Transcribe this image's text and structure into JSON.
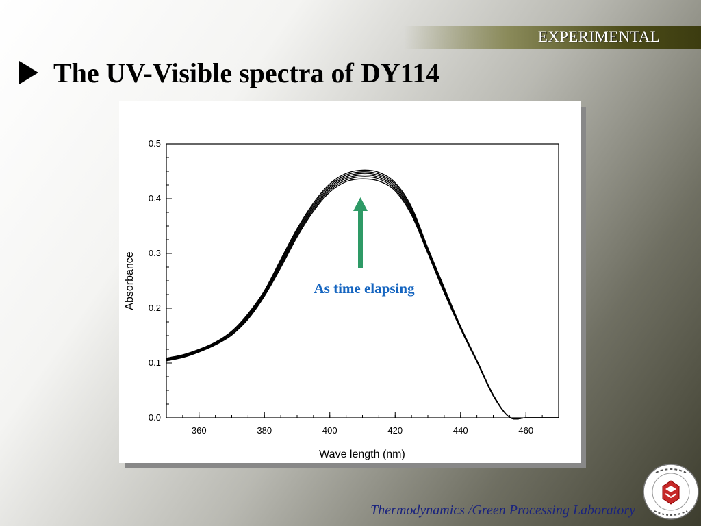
{
  "header": {
    "section_label": "EXPERIMENTAL"
  },
  "slide": {
    "title": "The UV-Visible spectra of DY114"
  },
  "footer": {
    "lab": "Thermodynamics /Green Processing Laboratory"
  },
  "logo": {
    "text": "서강대학교 · Sogang University"
  },
  "annotation": {
    "text": "As time elapsing",
    "color": "#1565c0",
    "arrow_color": "#2e9a66"
  },
  "chart_data": {
    "type": "line",
    "title": "",
    "xlabel": "Wave length (nm)",
    "ylabel": "Absorbance",
    "xlim": [
      350,
      470
    ],
    "ylim": [
      0.0,
      0.5
    ],
    "xticks": [
      360,
      380,
      400,
      420,
      440,
      460
    ],
    "yticks": [
      0.0,
      0.1,
      0.2,
      0.3,
      0.4,
      0.5
    ],
    "ytick_labels": [
      "0.0",
      "0.1",
      "0.2",
      "0.3",
      "0.4",
      "0.5"
    ],
    "grid": false,
    "legend": "none",
    "x": [
      350,
      355,
      360,
      365,
      370,
      375,
      380,
      385,
      390,
      395,
      400,
      405,
      410,
      415,
      420,
      425,
      430,
      435,
      440,
      445,
      450,
      455,
      460,
      465,
      470
    ],
    "series": [
      {
        "values": [
          0.104,
          0.11,
          0.12,
          0.133,
          0.151,
          0.18,
          0.222,
          0.274,
          0.33,
          0.377,
          0.412,
          0.431,
          0.436,
          0.432,
          0.414,
          0.37,
          0.3,
          0.228,
          0.162,
          0.102,
          0.04,
          0.001,
          0.0,
          0.0,
          0.0
        ]
      },
      {
        "values": [
          0.105,
          0.111,
          0.121,
          0.134,
          0.152,
          0.182,
          0.224,
          0.277,
          0.333,
          0.38,
          0.415,
          0.434,
          0.44,
          0.436,
          0.417,
          0.373,
          0.302,
          0.23,
          0.163,
          0.103,
          0.04,
          0.001,
          0.0,
          0.0,
          0.0
        ]
      },
      {
        "values": [
          0.106,
          0.112,
          0.122,
          0.135,
          0.154,
          0.184,
          0.226,
          0.28,
          0.336,
          0.383,
          0.418,
          0.437,
          0.443,
          0.439,
          0.42,
          0.376,
          0.304,
          0.232,
          0.164,
          0.103,
          0.041,
          0.001,
          0.0,
          0.0,
          0.0
        ]
      },
      {
        "values": [
          0.107,
          0.113,
          0.123,
          0.136,
          0.155,
          0.186,
          0.228,
          0.283,
          0.339,
          0.386,
          0.421,
          0.44,
          0.446,
          0.442,
          0.423,
          0.379,
          0.306,
          0.234,
          0.165,
          0.104,
          0.041,
          0.001,
          0.0,
          0.0,
          0.0
        ]
      },
      {
        "values": [
          0.108,
          0.114,
          0.124,
          0.137,
          0.157,
          0.188,
          0.23,
          0.286,
          0.342,
          0.389,
          0.424,
          0.443,
          0.449,
          0.445,
          0.426,
          0.382,
          0.308,
          0.236,
          0.166,
          0.105,
          0.042,
          0.001,
          0.0,
          0.0,
          0.0
        ]
      },
      {
        "values": [
          0.109,
          0.115,
          0.125,
          0.138,
          0.158,
          0.19,
          0.232,
          0.289,
          0.345,
          0.392,
          0.427,
          0.446,
          0.452,
          0.448,
          0.429,
          0.385,
          0.31,
          0.238,
          0.167,
          0.105,
          0.042,
          0.001,
          0.0,
          0.0,
          0.0
        ]
      }
    ]
  }
}
